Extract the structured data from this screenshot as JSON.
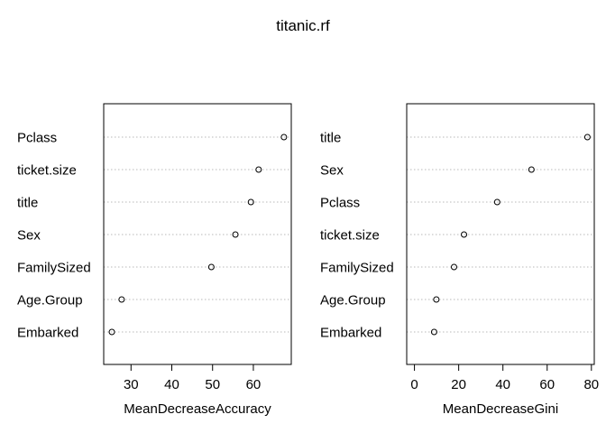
{
  "title": "titanic.rf",
  "chart_data": [
    {
      "type": "scatter",
      "subtype": "dotchart",
      "xlabel": "MeanDecreaseAccuracy",
      "ylabel": "",
      "categories": [
        "Pclass",
        "ticket.size",
        "title",
        "Sex",
        "FamilySized",
        "Age.Group",
        "Embarked"
      ],
      "values": [
        67.5,
        61.3,
        59.4,
        55.6,
        49.7,
        27.7,
        25.3
      ],
      "xlim": [
        23.3,
        69.3
      ],
      "xticks": [
        30,
        40,
        50,
        60
      ],
      "grid": "dotted horizontal",
      "point_color": "#000000"
    },
    {
      "type": "scatter",
      "subtype": "dotchart",
      "xlabel": "MeanDecreaseGini",
      "ylabel": "",
      "categories": [
        "title",
        "Sex",
        "Pclass",
        "ticket.size",
        "FamilySized",
        "Age.Group",
        "Embarked"
      ],
      "values": [
        78.2,
        52.9,
        37.4,
        22.4,
        17.9,
        9.9,
        8.9
      ],
      "xlim": [
        -3.5,
        81.3
      ],
      "xticks": [
        0,
        20,
        40,
        60,
        80
      ],
      "grid": "dotted horizontal",
      "point_color": "#000000"
    }
  ]
}
